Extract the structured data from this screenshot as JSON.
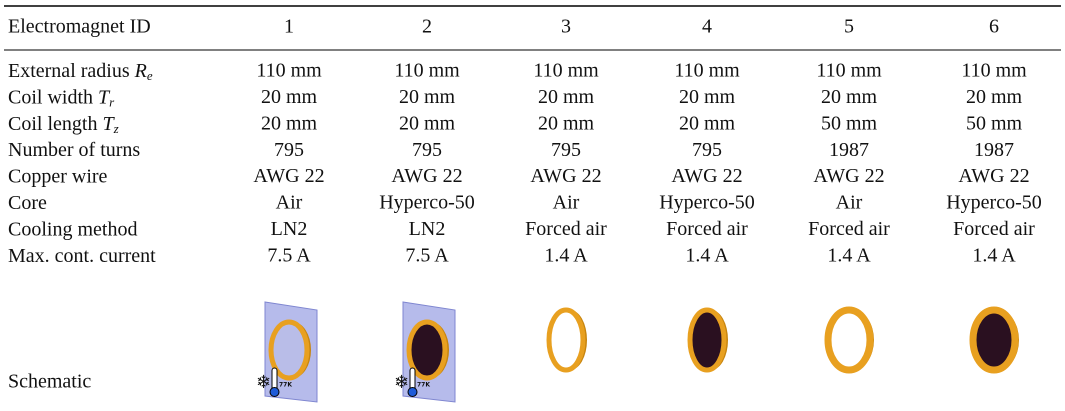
{
  "table": {
    "header": [
      "Electromagnet ID",
      "1",
      "2",
      "3",
      "4",
      "5",
      "6"
    ],
    "rows": [
      {
        "label": {
          "text": "External radius",
          "symbol": "R",
          "subscript": "e"
        },
        "cells": [
          "110 mm",
          "110 mm",
          "110 mm",
          "110 mm",
          "110 mm",
          "110 mm"
        ]
      },
      {
        "label": {
          "text": "Coil width",
          "symbol": "T",
          "subscript": "r"
        },
        "cells": [
          "20 mm",
          "20 mm",
          "20 mm",
          "20 mm",
          "20 mm",
          "20 mm"
        ]
      },
      {
        "label": {
          "text": "Coil length",
          "symbol": "T",
          "subscript": "z"
        },
        "cells": [
          "20 mm",
          "20 mm",
          "20 mm",
          "20 mm",
          "50 mm",
          "50 mm"
        ]
      },
      {
        "label": {
          "text": "Number of turns"
        },
        "cells": [
          "795",
          "795",
          "795",
          "795",
          "1987",
          "1987"
        ]
      },
      {
        "label": {
          "text": "Copper wire"
        },
        "cells": [
          "AWG 22",
          "AWG 22",
          "AWG 22",
          "AWG 22",
          "AWG 22",
          "AWG 22"
        ]
      },
      {
        "label": {
          "text": "Core"
        },
        "cells": [
          "Air",
          "Hyperco-50",
          "Air",
          "Hyperco-50",
          "Air",
          "Hyperco-50"
        ]
      },
      {
        "label": {
          "text": "Cooling method"
        },
        "cells": [
          "LN2",
          "LN2",
          "Forced air",
          "Forced air",
          "Forced air",
          "Forced air"
        ]
      },
      {
        "label": {
          "text": "Max. cont. current"
        },
        "cells": [
          "7.5 A",
          "7.5 A",
          "1.4 A",
          "1.4 A",
          "1.4 A",
          "1.4 A"
        ]
      }
    ],
    "schematic": {
      "label": "Schematic",
      "cooling_icon_label": "77K"
    }
  }
}
